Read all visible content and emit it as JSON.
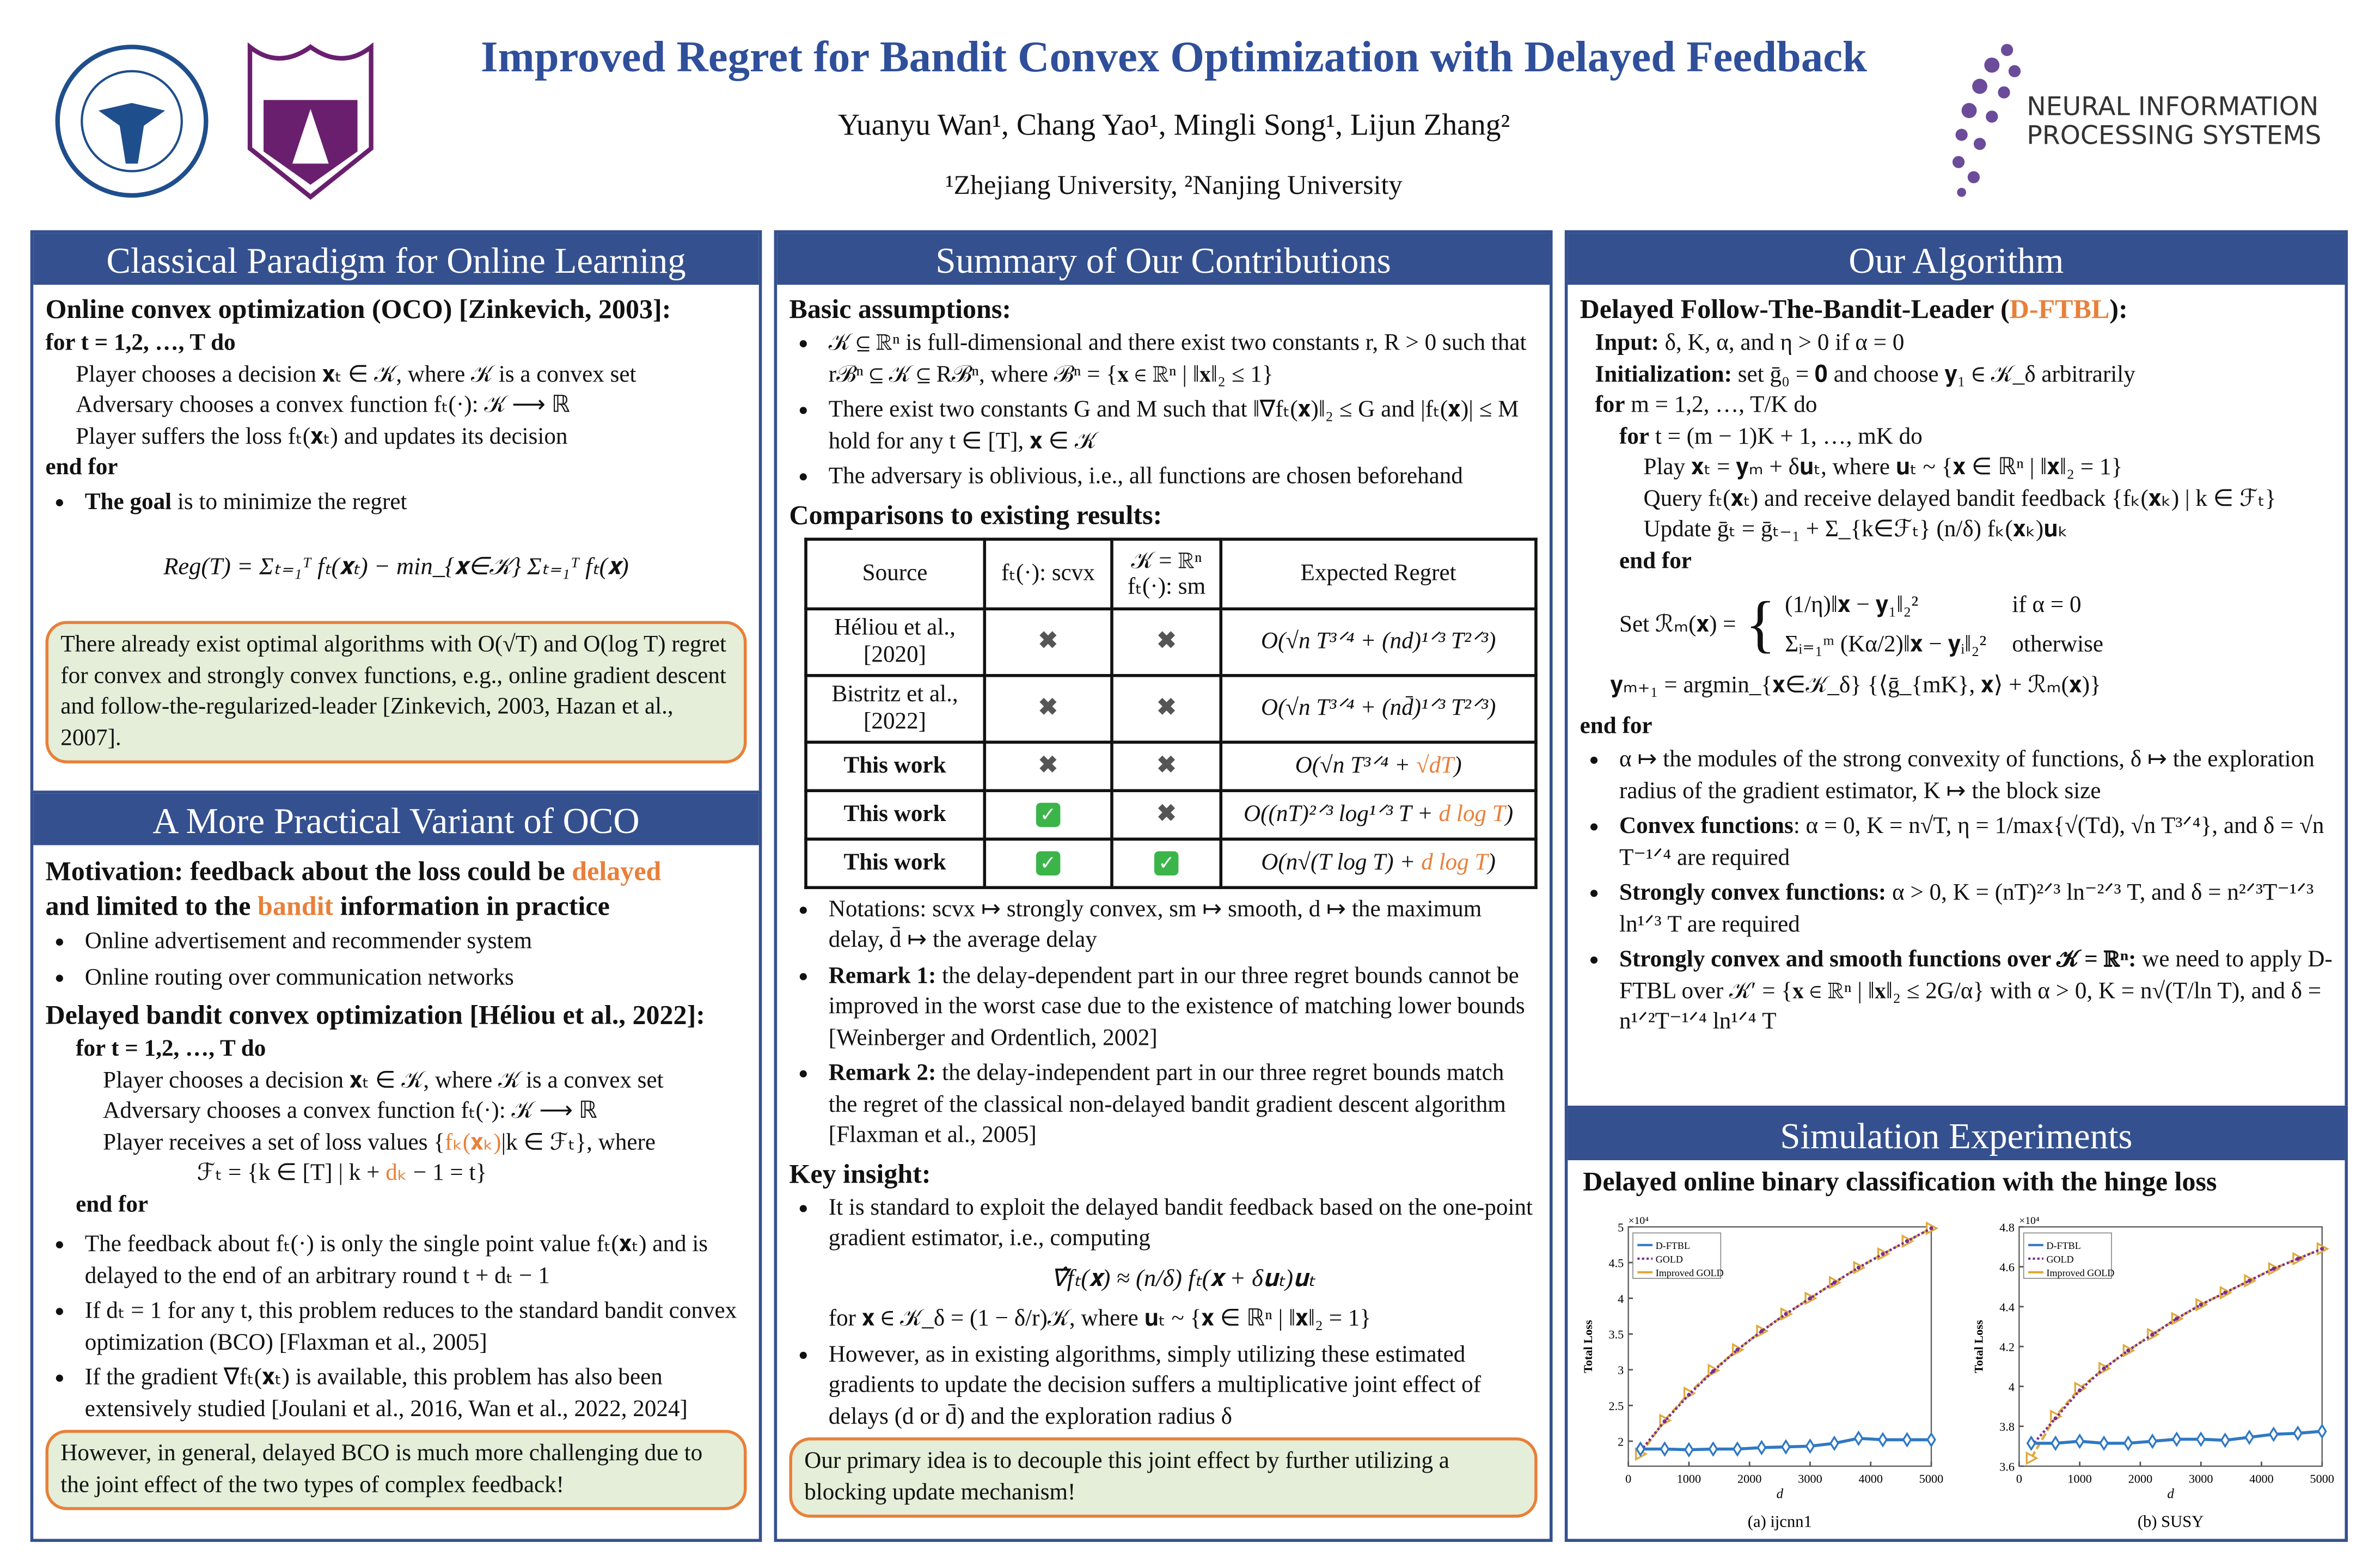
{
  "header": {
    "title": "Improved Regret for Bandit Convex Optimization with Delayed Feedback",
    "authors": "Yuanyu Wan¹, Chang Yao¹, Mingli Song¹, Lijun Zhang²",
    "affiliations": "¹Zhejiang University, ²Nanjing University",
    "logo_zju": "ZHEJIANG UNIVERSITY 1897",
    "logo_nju": "NANJING UNIVERSITY 1902",
    "logo_neurips_1": "NEURAL INFORMATION",
    "logo_neurips_2": "PROCESSING SYSTEMS"
  },
  "colors": {
    "header_bg": "#34508f",
    "title": "#2f4f9a",
    "highlight": "#e8803a",
    "box_bg": "#e4eed8"
  },
  "col1": {
    "header": "Classical Paradigm for Online Learning",
    "oco_title": "Online convex optimization (OCO) [Zinkevich, 2003]:",
    "algo": [
      "for t = 1,2, …, T do",
      "Player chooses a decision 𝐱ₜ ∈ 𝒦, where 𝒦 is a convex set",
      "Adversary chooses a convex function fₜ(·): 𝒦 ⟶ ℝ",
      "Player suffers the loss fₜ(𝐱ₜ) and updates its decision",
      "end for"
    ],
    "goal_bold": "The goal",
    "goal_rest": " is to minimize the regret",
    "regret_eq": "Reg(T) = Σₜ₌₁ᵀ fₜ(𝐱ₜ) − min_{𝐱∈𝒦} Σₜ₌₁ᵀ fₜ(𝐱)",
    "box1": "There already exist optimal algorithms with O(√T) and O(log T) regret for convex and strongly convex functions, e.g., online gradient descent and follow-the-regularized-leader [Zinkevich, 2003, Hazan et al., 2007].",
    "header2": "A More Practical Variant of OCO",
    "motivation_1": "Motivation: feedback about the loss could be ",
    "motivation_delayed": "delayed",
    "motivation_2": "and limited to the ",
    "motivation_bandit": "bandit",
    "motivation_3": " information in practice",
    "examples": [
      "Online advertisement and recommender system",
      "Online routing over communication networks"
    ],
    "dbco_title": "Delayed bandit convex optimization [Héliou et al., 2022]:",
    "algo2": [
      "for t = 1,2, …, T do",
      "Player chooses a decision 𝐱ₜ ∈ 𝒦, where 𝒦 is a convex set",
      "Adversary chooses a convex function fₜ(·): 𝒦 ⟶ ℝ",
      "Player receives a set of loss values {",
      "fₖ(𝐱ₖ)",
      "|k ∈ ℱₜ}, where",
      "ℱₜ = {k ∈ [T] | k + ",
      "dₖ",
      " − 1 = t}",
      "end for"
    ],
    "bullets": [
      "The feedback about fₜ(·) is only the single point value fₜ(𝐱ₜ) and is delayed to the end of an arbitrary round t + dₜ − 1",
      "If dₜ = 1 for any t, this problem reduces to the standard bandit convex optimization (BCO) [Flaxman et al., 2005]",
      "If the gradient ∇fₜ(𝐱ₜ) is available, this problem has also been extensively studied [Joulani et al., 2016, Wan et al., 2022, 2024]"
    ],
    "box2": "However, in general, delayed BCO is much more challenging due to the joint effect of the two types of complex feedback!"
  },
  "col2": {
    "header": "Summary of Our Contributions",
    "assump_title": "Basic assumptions",
    "assumptions": [
      "𝒦 ⊆ ℝⁿ is full-dimensional and there exist two constants r, R > 0 such that rℬⁿ ⊆ 𝒦 ⊆ Rℬⁿ, where ℬⁿ = {𝐱 ∈ ℝⁿ | ‖𝐱‖₂ ≤ 1}",
      "There exist two constants G and M such that ‖∇fₜ(𝐱)‖₂ ≤ G and |fₜ(𝐱)| ≤ M hold for any t ∈ [T], 𝐱 ∈ 𝒦",
      "The adversary is oblivious, i.e., all functions are chosen beforehand"
    ],
    "comp_title": "Comparisons to existing results",
    "table": {
      "headers": [
        "Source",
        "fₜ(·): scvx",
        "𝒦 = ℝⁿ",
        "fₜ(·): sm",
        "Expected Regret"
      ],
      "rows": [
        {
          "source": "Héliou et al., [2020]",
          "scvx": "✖",
          "sm": "✖",
          "regret": "O(√n T³ᐟ⁴ + (nd)¹ᐟ³ T²ᐟ³)",
          "regret_hl": "",
          "regret_end": "",
          "bold": false
        },
        {
          "source": "Bistritz et al., [2022]",
          "scvx": "✖",
          "sm": "✖",
          "regret": "O(√n T³ᐟ⁴ + (nd̄)¹ᐟ³ T²ᐟ³)",
          "regret_hl": "",
          "regret_end": "",
          "bold": false
        },
        {
          "source": "This work",
          "scvx": "✖",
          "sm": "✖",
          "regret": "O(√n T³ᐟ⁴ + ",
          "regret_hl": "√dT",
          "regret_end": ")",
          "bold": true
        },
        {
          "source": "This work",
          "scvx": "✓",
          "sm": "✖",
          "regret": "O((nT)²ᐟ³ log¹ᐟ³ T + ",
          "regret_hl": "d log T",
          "regret_end": ")",
          "bold": true
        },
        {
          "source": "This work",
          "scvx": "✓",
          "sm": "✓",
          "regret": "O(n√(T log T) + ",
          "regret_hl": "d log T",
          "regret_end": ")",
          "bold": true
        }
      ]
    },
    "notes": [
      {
        "bold": "",
        "text": "Notations: scvx ↦ strongly convex, sm ↦ smooth, d ↦ the maximum delay, d̄ ↦ the average delay"
      },
      {
        "bold": "Remark 1:",
        "text": " the delay-dependent part in our three regret bounds cannot be improved in the worst case due to the existence of matching lower bounds [Weinberger and Ordentlich, 2002]"
      },
      {
        "bold": "Remark 2:",
        "text": " the delay-independent part in our three regret bounds match the regret of the classical non-delayed bandit gradient descent algorithm [Flaxman et al., 2005]"
      }
    ],
    "insight_title": "Key insight",
    "insight1": "It is standard to exploit the delayed bandit feedback based on the one-point gradient estimator, i.e., computing",
    "insight_eq": "∇̂fₜ(𝐱) ≈ (n/δ) fₜ(𝐱 + δ𝐮ₜ)𝐮ₜ",
    "insight_where": "for 𝐱 ∈ 𝒦_δ = (1 − δ/r)𝒦, where 𝐮ₜ ~ {𝐱 ∈ ℝⁿ | ‖𝐱‖₂ = 1}",
    "insight2": "However, as in existing algorithms, simply utilizing these estimated gradients to update the decision suffers a multiplicative joint effect of delays (d or d̄) and the exploration radius δ",
    "box": "Our primary idea is to decouple this joint effect by further utilizing a blocking update mechanism!"
  },
  "col3": {
    "header": "Our Algorithm",
    "algo_title_1": "Delayed Follow-The-Bandit-Leader (",
    "algo_title_hl": "D-FTBL",
    "algo_title_2": "):",
    "lines": [
      {
        "b": "Input:",
        "t": " δ, K, α, and η > 0 if α = 0",
        "ind": 0
      },
      {
        "b": "Initialization:",
        "t": " set ḡ₀ = 𝟎 and choose 𝐲₁ ∈ 𝒦_δ arbitrarily",
        "ind": 0
      },
      {
        "b": "for",
        "t": " m = 1,2, …, T/K do",
        "ind": 0
      },
      {
        "b": "for",
        "t": " t = (m − 1)K + 1, …, mK do",
        "ind": 1
      },
      {
        "b": "",
        "t": "Play 𝐱ₜ = 𝐲ₘ + δ𝐮ₜ, where 𝐮ₜ ~ {𝐱 ∈ ℝⁿ | ‖𝐱‖₂ = 1}",
        "ind": 2
      },
      {
        "b": "",
        "t": "Query fₜ(𝐱ₜ) and receive delayed bandit feedback {fₖ(𝐱ₖ) | k ∈ ℱₜ}",
        "ind": 2
      },
      {
        "b": "",
        "t": "Update ḡₜ = ḡₜ₋₁ + Σ_{k∈ℱₜ} (n/δ) fₖ(𝐱ₖ)𝐮ₖ",
        "ind": 2
      },
      {
        "b": "end for",
        "t": "",
        "ind": 1
      }
    ],
    "set_r": "Set ℛₘ(𝐱) =",
    "case1": "(1/η)‖𝐱 − 𝐲₁‖₂²",
    "case1_cond": "if α = 0",
    "case2": "Σᵢ₌₁ᵐ (Kα/2)‖𝐱 − 𝐲ᵢ‖₂²",
    "case2_cond": "otherwise",
    "ymp": "𝐲ₘ₊₁ = argmin_{𝐱∈𝒦_δ} {⟨ḡ_{mK}, 𝐱⟩ + ℛₘ(𝐱)}",
    "end_for": "end for",
    "bullets": [
      {
        "b": "",
        "t": "α ↦ the modules of the strong convexity of functions, δ ↦ the exploration radius of the gradient estimator, K ↦ the block size"
      },
      {
        "b": "Convex functions",
        "t": ": α = 0, K = n√T, η = 1/max{√(Td), √n T³ᐟ⁴}, and δ = √n T⁻¹ᐟ⁴ are required"
      },
      {
        "b": "Strongly convex functions:",
        "t": " α > 0, K = (nT)²ᐟ³ ln⁻²ᐟ³ T, and δ = n²ᐟ³T⁻¹ᐟ³ ln¹ᐟ³ T are required"
      },
      {
        "b": "Strongly convex and smooth functions over 𝒦 = ℝⁿ:",
        "t": " we need to apply D-FTBL over 𝒦′ = {𝐱 ∈ ℝⁿ | ‖𝐱‖₂ ≤ 2G/α} with α > 0, K = n√(T/ln T), and δ = n¹ᐟ²T⁻¹ᐟ⁴ ln¹ᐟ⁴ T"
      }
    ],
    "header2": "Simulation Experiments",
    "sim_title": "Delayed online binary classification with the hinge loss"
  },
  "chart_data": [
    {
      "type": "line",
      "title": "",
      "caption": "(a) ijcnn1",
      "xlabel": "d",
      "ylabel": "Total Loss",
      "y_multiplier": "×10⁴",
      "xlim": [
        0,
        5000
      ],
      "ylim": [
        1.65,
        5
      ],
      "xticks": [
        0,
        1000,
        2000,
        3000,
        4000,
        5000
      ],
      "yticks": [
        2,
        2.5,
        3,
        3.5,
        4,
        4.5,
        5
      ],
      "legend_position": "top-left",
      "grid": false,
      "x": [
        200,
        600,
        1000,
        1400,
        1800,
        2200,
        2600,
        3000,
        3400,
        3800,
        4200,
        4600,
        5000
      ],
      "series": [
        {
          "name": "D-FTBL",
          "color": "#2f78c4",
          "marker": "diamond",
          "dash": "solid",
          "values": [
            1.89,
            1.89,
            1.88,
            1.89,
            1.89,
            1.91,
            1.92,
            1.93,
            1.97,
            2.04,
            2.02,
            2.02,
            2.02
          ]
        },
        {
          "name": "GOLD",
          "color": "#7b2d8e",
          "marker": "star",
          "dash": "dotted",
          "values": [
            1.86,
            2.28,
            2.65,
            2.98,
            3.28,
            3.54,
            3.78,
            4.0,
            4.22,
            4.43,
            4.62,
            4.8,
            4.98
          ]
        },
        {
          "name": "Improved GOLD",
          "color": "#e0a93a",
          "marker": "triangle-right",
          "dash": "dashed",
          "values": [
            1.82,
            2.29,
            2.67,
            2.99,
            3.28,
            3.54,
            3.78,
            4.0,
            4.22,
            4.43,
            4.62,
            4.8,
            4.98
          ]
        }
      ]
    },
    {
      "type": "line",
      "title": "",
      "caption": "(b) SUSY",
      "xlabel": "d",
      "ylabel": "Total Loss",
      "y_multiplier": "×10⁴",
      "xlim": [
        0,
        5000
      ],
      "ylim": [
        3.6,
        4.8
      ],
      "xticks": [
        0,
        1000,
        2000,
        3000,
        4000,
        5000
      ],
      "yticks": [
        3.6,
        3.8,
        4,
        4.2,
        4.4,
        4.6,
        4.8
      ],
      "legend_position": "top-left",
      "grid": false,
      "x": [
        200,
        600,
        1000,
        1400,
        1800,
        2200,
        2600,
        3000,
        3400,
        3800,
        4200,
        4600,
        5000
      ],
      "series": [
        {
          "name": "D-FTBL",
          "color": "#2f78c4",
          "marker": "diamond",
          "dash": "solid",
          "values": [
            3.715,
            3.715,
            3.725,
            3.715,
            3.715,
            3.725,
            3.735,
            3.735,
            3.73,
            3.745,
            3.76,
            3.765,
            3.775
          ]
        },
        {
          "name": "GOLD",
          "color": "#7b2d8e",
          "marker": "star",
          "dash": "dotted",
          "values": [
            3.7,
            3.84,
            3.98,
            4.09,
            4.18,
            4.26,
            4.34,
            4.41,
            4.47,
            4.53,
            4.59,
            4.64,
            4.69
          ]
        },
        {
          "name": "Improved GOLD",
          "color": "#e0a93a",
          "marker": "triangle-right",
          "dash": "dashed",
          "values": [
            3.64,
            3.85,
            3.99,
            4.09,
            4.18,
            4.26,
            4.34,
            4.41,
            4.47,
            4.53,
            4.59,
            4.64,
            4.69
          ]
        }
      ]
    }
  ]
}
